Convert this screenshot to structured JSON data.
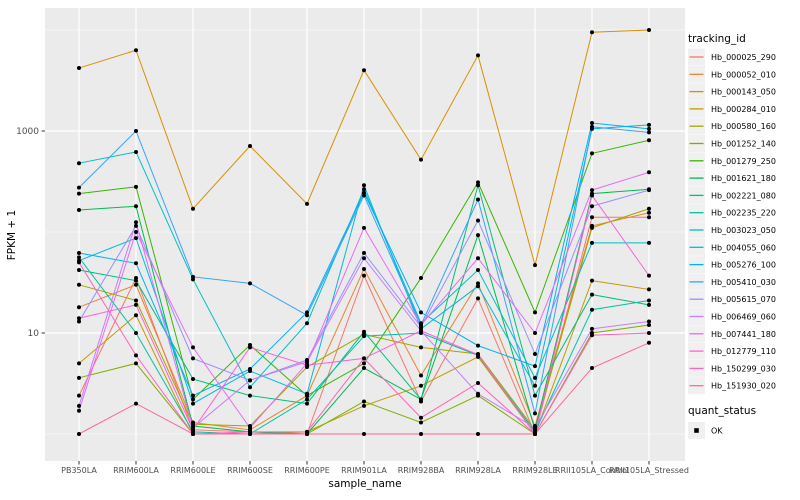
{
  "chart_data": {
    "type": "line",
    "title": "",
    "xlabel": "sample_name",
    "ylabel": "FPKM + 1",
    "y_scale": "log10",
    "y_tick_values": [
      10,
      1000
    ],
    "y_tick_labels": [
      "10",
      "1000"
    ],
    "y_minor_values": [
      1,
      100,
      10000
    ],
    "ylim": [
      0.55,
      16000
    ],
    "grid": true,
    "legend_position": "right",
    "legend_title": "tracking_id",
    "quant_status": {
      "title": "quant_status",
      "label": "OK",
      "marker_color": "#000000"
    },
    "panel_bg": "#EBEBEB",
    "grid_color": "#FFFFFF",
    "axis_text_color": "#4D4D4D",
    "point_color": "#000000",
    "categories": [
      "PB350LA",
      "RRIM600LA",
      "RRIM600LE",
      "RRIM600SE",
      "RRIM600PE",
      "RRIM901LA",
      "RRIM928BA",
      "RRIM928LA",
      "RRIM928LE",
      "RRII105LA_Control",
      "RRII105LA_Stressed"
    ],
    "series": [
      {
        "name": "Hb_000025_290",
        "color": "#F8766D",
        "values": [
          2.4,
          35,
          1.1,
          1.05,
          1.0,
          37,
          2.1,
          22,
          1.0,
          140,
          140
        ]
      },
      {
        "name": "Hb_000052_010",
        "color": "#EA8331",
        "values": [
          18,
          30,
          1.3,
          1.1,
          2.4,
          43,
          3.8,
          31,
          1.2,
          115,
          155
        ]
      },
      {
        "name": "Hb_000143_050",
        "color": "#D89000",
        "values": [
          4200,
          6300,
          170,
          710,
          190,
          4000,
          520,
          5600,
          47,
          9500,
          10000
        ]
      },
      {
        "name": "Hb_000284_010",
        "color": "#C09B00",
        "values": [
          5.0,
          15,
          1.0,
          1.0,
          1.05,
          1.9,
          3.0,
          5.8,
          1.0,
          33,
          27
        ]
      },
      {
        "name": "Hb_000580_160",
        "color": "#A3A500",
        "values": [
          30,
          21,
          1.25,
          1.2,
          4.6,
          9.7,
          7.2,
          6.2,
          1.1,
          110,
          170
        ]
      },
      {
        "name": "Hb_001252_140",
        "color": "#7CAE00",
        "values": [
          3.6,
          5.0,
          1.0,
          1.0,
          1.0,
          2.1,
          1.3,
          2.4,
          1.0,
          10,
          12
        ]
      },
      {
        "name": "Hb_001279_250",
        "color": "#39B600",
        "values": [
          240,
          280,
          2.2,
          7.6,
          2.4,
          5.0,
          35,
          310,
          16,
          600,
          810
        ]
      },
      {
        "name": "Hb_001621_180",
        "color": "#00BB4E",
        "values": [
          165,
          180,
          1.2,
          1.05,
          1.0,
          4.5,
          2.2,
          93,
          1.1,
          240,
          265
        ]
      },
      {
        "name": "Hb_002221_080",
        "color": "#00BF7D",
        "values": [
          42,
          33,
          3.5,
          2.4,
          2.0,
          10.3,
          2.2,
          290,
          2.4,
          24,
          19
        ]
      },
      {
        "name": "Hb_002235_220",
        "color": "#00C1A3",
        "values": [
          56,
          10,
          1.05,
          1.0,
          2.2,
          9.3,
          10,
          6.0,
          1.05,
          17,
          21
        ]
      },
      {
        "name": "Hb_003023_050",
        "color": "#00BFC4",
        "values": [
          480,
          620,
          34,
          2.9,
          12.5,
          265,
          12.5,
          42,
          3.6,
          78,
          78
        ]
      },
      {
        "name": "Hb_004055_060",
        "color": "#00BAE0",
        "values": [
          52,
          87,
          2.0,
          4.2,
          2.5,
          290,
          11,
          29,
          3.0,
          1050,
          1150
        ]
      },
      {
        "name": "Hb_005276_100",
        "color": "#00B0F6",
        "values": [
          62,
          49,
          2.4,
          4.4,
          16,
          245,
          16,
          7.5,
          4.7,
          1200,
          1050
        ]
      },
      {
        "name": "Hb_005410_030",
        "color": "#35A2FF",
        "values": [
          275,
          1000,
          36,
          31,
          15,
          230,
          12,
          210,
          1.6,
          1100,
          970
        ]
      },
      {
        "name": "Hb_005615_070",
        "color": "#9590FF",
        "values": [
          13,
          115,
          5.6,
          3.4,
          5.4,
          62,
          11.5,
          130,
          6.2,
          180,
          260
        ]
      },
      {
        "name": "Hb_006469_060",
        "color": "#C77CFF",
        "values": [
          1.9,
          125,
          1.15,
          3.4,
          5.2,
          55,
          10.5,
          2.5,
          1.15,
          11,
          13
        ]
      },
      {
        "name": "Hb_007441_180",
        "color": "#E76BF3",
        "values": [
          1.7,
          100,
          7.2,
          1.15,
          5.0,
          110,
          12,
          55,
          10,
          260,
          390
        ]
      },
      {
        "name": "Hb_012779_110",
        "color": "#FA62DB",
        "values": [
          14,
          19,
          1.1,
          7.2,
          4.8,
          5.6,
          10.5,
          6.1,
          1.0,
          230,
          37
        ]
      },
      {
        "name": "Hb_150299_030",
        "color": "#FF62BC",
        "values": [
          50,
          6.0,
          1.0,
          1.05,
          1.05,
          5.6,
          1.45,
          3.2,
          1.0,
          9.5,
          10
        ]
      },
      {
        "name": "Hb_151930_020",
        "color": "#FF6A98",
        "values": [
          1.0,
          2.0,
          1.0,
          1.0,
          1.0,
          1.0,
          1.0,
          1.0,
          1.0,
          4.5,
          8
        ]
      }
    ]
  }
}
